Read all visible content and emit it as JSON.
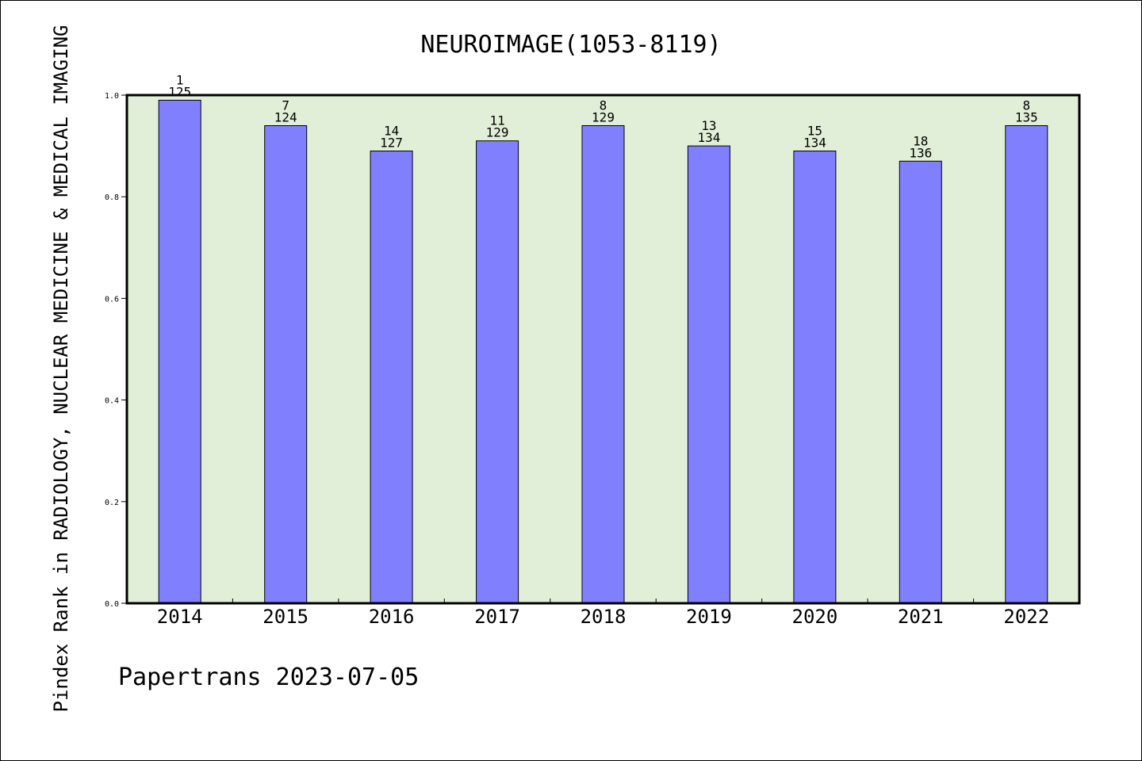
{
  "chart_data": {
    "type": "bar",
    "title": "NEUROIMAGE(1053-8119)",
    "xlabel": "",
    "ylabel": "Pindex Rank in RADIOLOGY, NUCLEAR MEDICINE & MEDICAL IMAGING",
    "ylim": [
      0.0,
      1.0
    ],
    "yticks": [
      "0.0",
      "0.2",
      "0.4",
      "0.6",
      "0.8",
      "1.0"
    ],
    "categories": [
      "2014",
      "2015",
      "2016",
      "2017",
      "2018",
      "2019",
      "2020",
      "2021",
      "2022"
    ],
    "values": [
      0.99,
      0.94,
      0.89,
      0.91,
      0.94,
      0.9,
      0.89,
      0.87,
      0.94
    ],
    "ranks": [
      "1",
      "7",
      "14",
      "11",
      "8",
      "13",
      "15",
      "18",
      "8"
    ],
    "totals": [
      "125",
      "124",
      "127",
      "129",
      "129",
      "134",
      "134",
      "136",
      "135"
    ],
    "grid": false,
    "legend": "none",
    "colors": {
      "bar": "#8080ff",
      "plot_background": "#e2efd8",
      "axis": "#000000"
    }
  },
  "footer": "Papertrans 2023-07-05"
}
